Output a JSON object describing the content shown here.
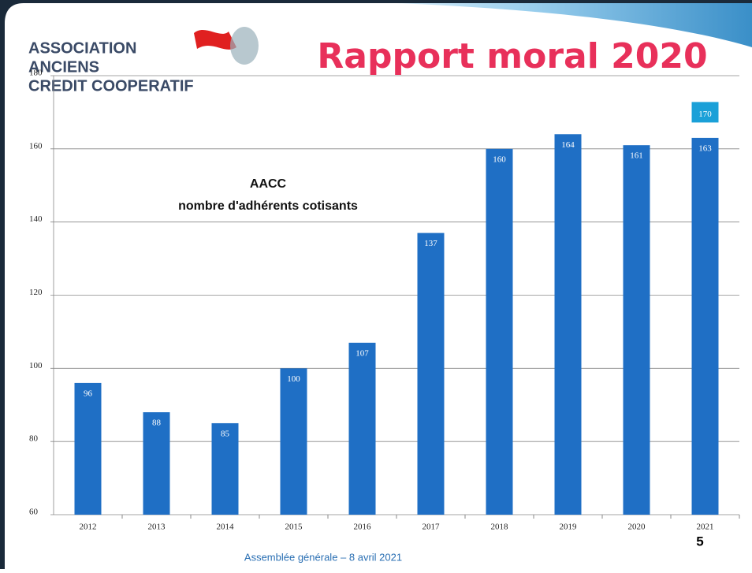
{
  "header": {
    "logo_lines": [
      "ASSOCIATION",
      "ANCIENS",
      "CREDIT COOPERATIF"
    ],
    "title": "Rapport moral 2020"
  },
  "chart_data": {
    "type": "bar",
    "title_lines": [
      "AACC",
      "nombre d'adhérents cotisants"
    ],
    "categories": [
      "2012",
      "2013",
      "2014",
      "2015",
      "2016",
      "2017",
      "2018",
      "2019",
      "2020",
      "2021"
    ],
    "series": [
      {
        "color": "#1f6fc5",
        "values": [
          96,
          88,
          85,
          100,
          107,
          137,
          160,
          164,
          161,
          163
        ]
      },
      {
        "color": "#1aa0d8",
        "values": [
          null,
          null,
          null,
          null,
          null,
          null,
          null,
          null,
          null,
          170
        ]
      }
    ],
    "ylim": [
      60,
      180
    ],
    "yticks": [
      60,
      80,
      100,
      120,
      140,
      160,
      180
    ],
    "grid": true
  },
  "footer": {
    "text": "Assemblée générale – 8 avril 2021",
    "page_number": "5"
  }
}
